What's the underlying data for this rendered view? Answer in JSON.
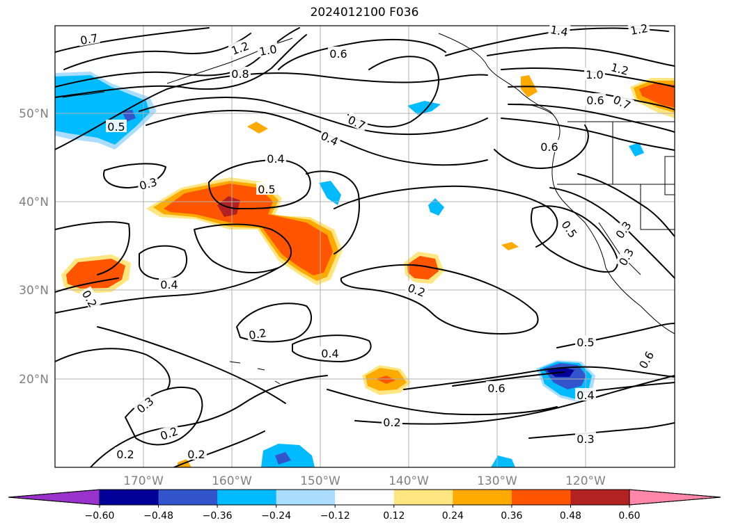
{
  "title": "2024012100 F036",
  "palette": {
    "neg_060": "#9933cc",
    "neg_048": "#000099",
    "neg_036": "#3355cc",
    "neg_024": "#00bbff",
    "neg_012": "#aaddff",
    "zero": "#ffffff",
    "pos_012": "#ffe680",
    "pos_024": "#ffaa00",
    "pos_036": "#ff5500",
    "pos_048": "#b22222",
    "pos_060": "#ff88aa"
  },
  "map": {
    "lat_labels": [
      "50°N",
      "40°N",
      "30°N",
      "20°N"
    ],
    "lon_labels": [
      "170°W",
      "160°W",
      "150°W",
      "140°W",
      "130°W",
      "120°W"
    ],
    "contour_labels": [
      "0.7",
      "1.2",
      "1.0",
      "0.8",
      "0.6",
      "1.4",
      "1.2",
      "1.0",
      "1.2",
      "0.6",
      "0.7",
      "0.5",
      "0.7",
      "0.4",
      "0.6",
      "0.4",
      "0.3",
      "0.5",
      "0.5",
      "0.3",
      "0.3",
      "0.4",
      "0.2",
      "0.2",
      "0.2",
      "0.4",
      "0.5",
      "0.6",
      "0.6",
      "0.4",
      "0.2",
      "0.3",
      "0.3",
      "0.2",
      "0.2",
      "0.2"
    ]
  },
  "colorbar": {
    "ticks": [
      "−0.60",
      "−0.48",
      "−0.36",
      "−0.24",
      "−0.12",
      "0.12",
      "0.24",
      "0.36",
      "0.48",
      "0.60"
    ]
  }
}
